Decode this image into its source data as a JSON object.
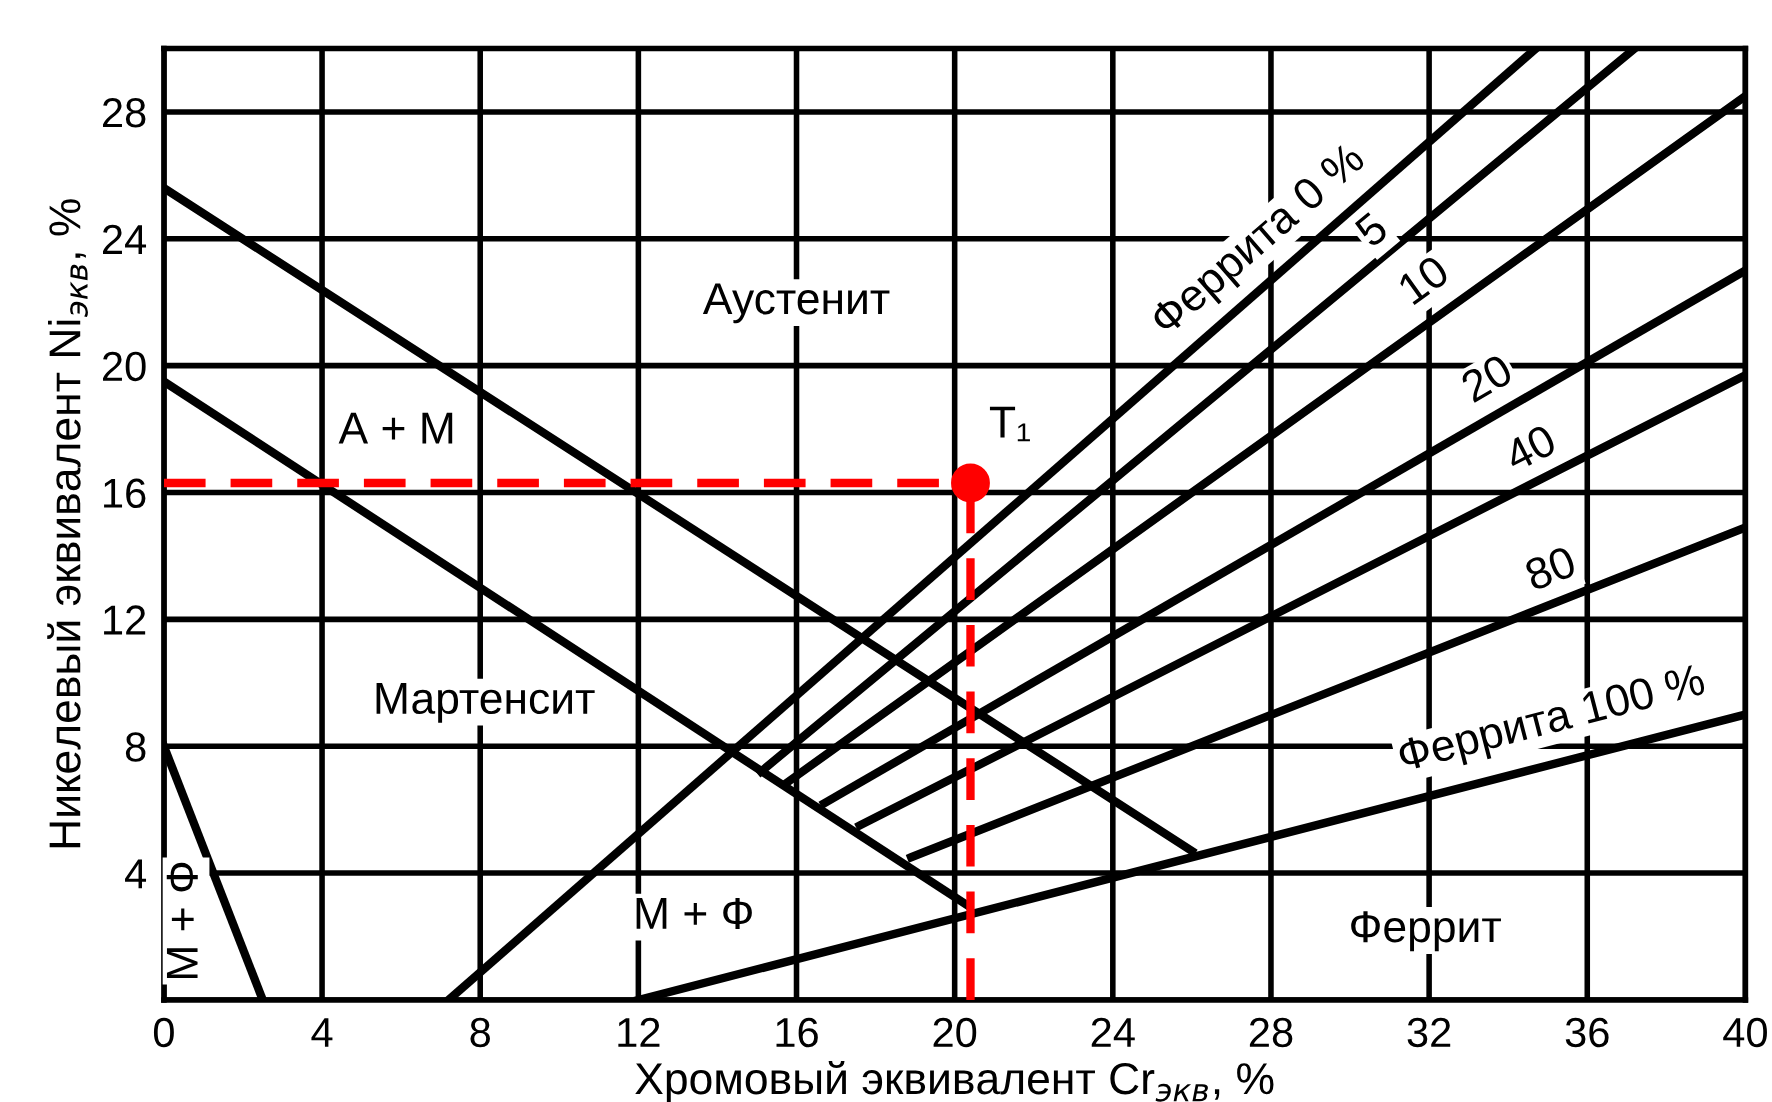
{
  "chart_data": {
    "type": "line",
    "xlabel": "Хромовый эквивалент Cr$_{экв}$, %",
    "ylabel": "Никелевый эквивалент Ni$_{экв}$, %",
    "xlim": [
      0,
      40
    ],
    "ylim": [
      0,
      30
    ],
    "xticks": [
      0,
      4,
      8,
      12,
      16,
      20,
      24,
      28,
      32,
      36,
      40
    ],
    "yticks": [
      {
        "value": 0,
        "label": null
      },
      4,
      8,
      12,
      16,
      20,
      24,
      28
    ],
    "grid": true,
    "legend": false,
    "marker": "none",
    "line_style": "solid",
    "series": [
      {
        "color": "#000000",
        "x": [
          0,
          26.0
        ],
        "values": [
          25.6,
          4.7
        ]
      },
      {
        "color": "#000000",
        "x": [
          0,
          20.3
        ],
        "values": [
          19.5,
          3.0
        ]
      },
      {
        "color": "#000000",
        "x": [
          7.2,
          34.7
        ],
        "values": [
          0,
          30
        ]
      },
      {
        "color": "#000000",
        "x": [
          15.1,
          37.2
        ],
        "values": [
          7.2,
          30
        ]
      },
      {
        "color": "#000000",
        "x": [
          15.7,
          40
        ],
        "values": [
          6.8,
          28.5
        ]
      },
      {
        "color": "#000000",
        "x": [
          16.7,
          40
        ],
        "values": [
          6.2,
          23.0
        ]
      },
      {
        "color": "#000000",
        "x": [
          17.6,
          40
        ],
        "values": [
          5.5,
          19.7
        ]
      },
      {
        "color": "#000000",
        "x": [
          18.9,
          40
        ],
        "values": [
          4.5,
          14.9
        ]
      },
      {
        "color": "#000000",
        "x": [
          12,
          40
        ],
        "values": [
          0,
          9.0
        ]
      },
      {
        "color": "#000000",
        "x": [
          0,
          2.5
        ],
        "values": [
          8,
          0
        ]
      },
      {
        "color": "#ff0000",
        "line_style": "dashed",
        "x": [
          0,
          20.4
        ],
        "values": [
          16.3,
          16.3
        ]
      },
      {
        "color": "#ff0000",
        "line_style": "dashed",
        "x": [
          20.4,
          20.4
        ],
        "values": [
          0,
          16.3
        ]
      },
      {
        "type": "scatter",
        "color": "#ff0000",
        "marker": "circle",
        "x": [
          20.4
        ],
        "values": [
          16.3
        ]
      }
    ],
    "annotations": [
      "Аустенит",
      "А + М",
      "Мартенсит",
      "М + Ф",
      "Феррит",
      "М + Ф",
      {
        "text": "T₁",
        "x": 21.4,
        "y": 18.1
      },
      "Феррита 0 %",
      {
        "text": "5",
        "x": 30.6,
        "y": 24.2
      },
      {
        "text": "10",
        "x": 31.9,
        "y": 22.6
      },
      {
        "text": "20",
        "x": 33.5,
        "y": 19.5
      },
      {
        "text": "40",
        "x": 34.6,
        "y": 17.3
      },
      {
        "text": "80",
        "x": 35.1,
        "y": 13.5
      },
      "Феррита 100 %"
    ]
  }
}
